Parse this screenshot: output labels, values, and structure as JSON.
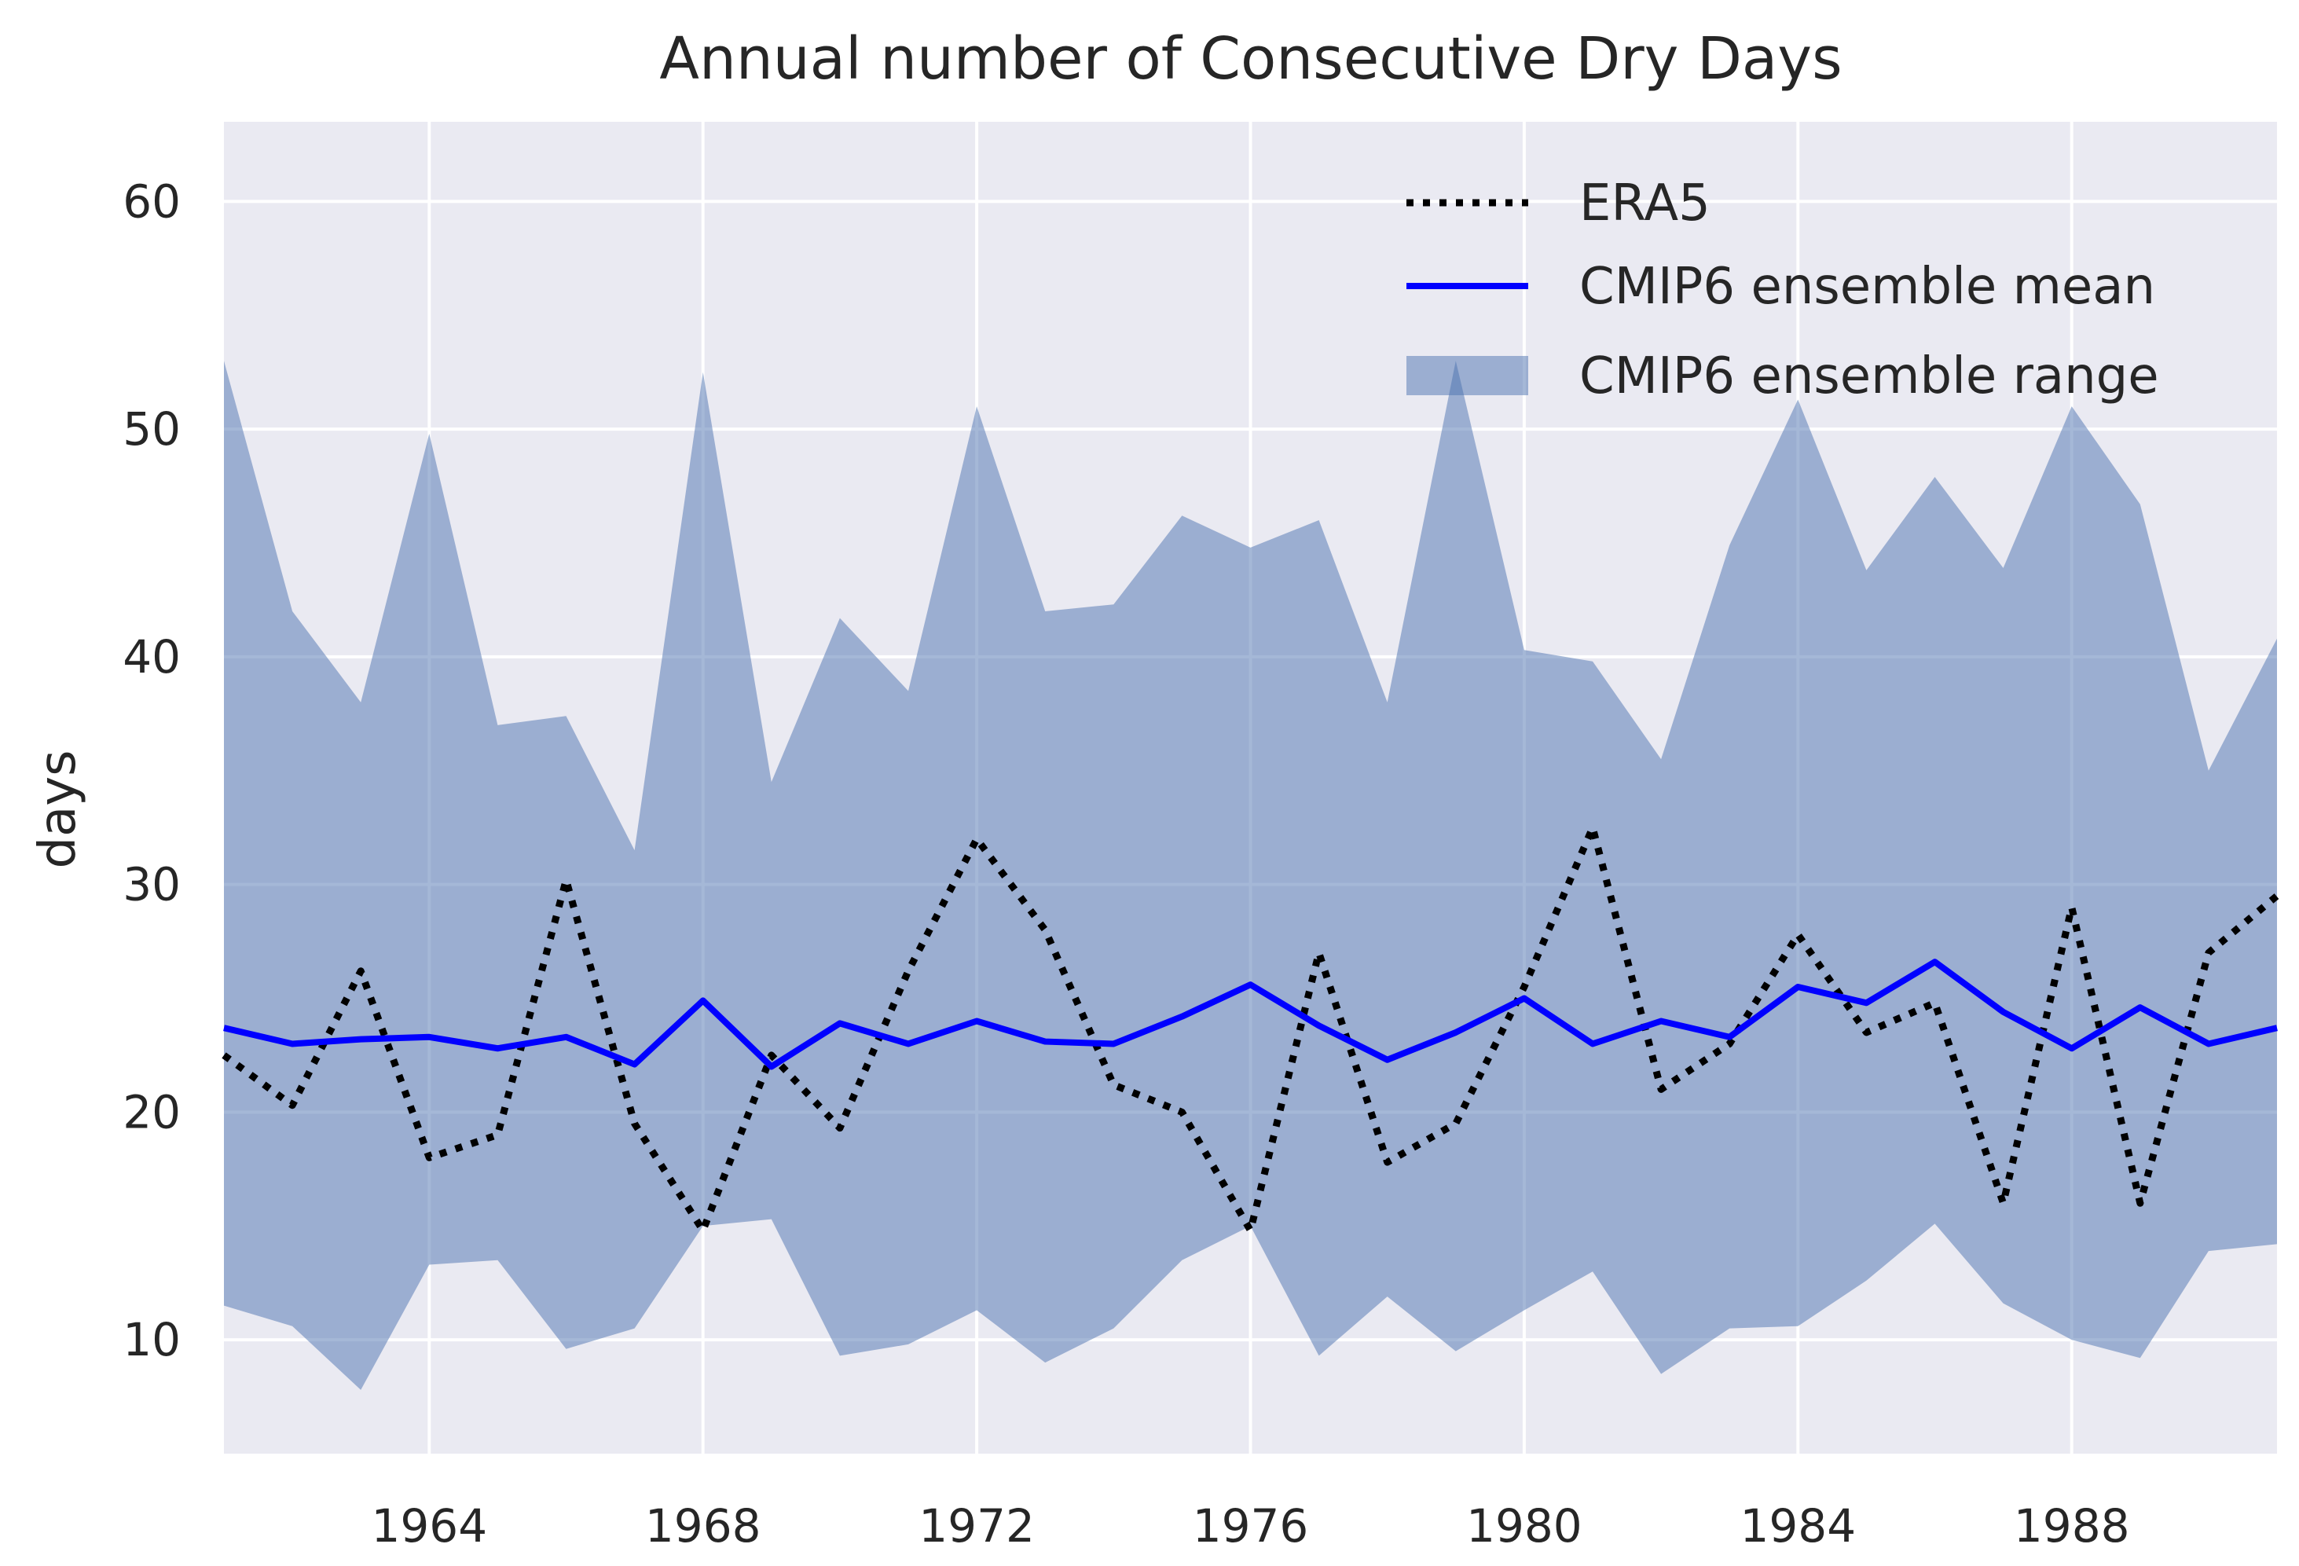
{
  "chart_data": {
    "type": "line",
    "title": "Annual number of Consecutive Dry Days",
    "xlabel": "",
    "ylabel": "days",
    "xlim": [
      1961,
      1991
    ],
    "ylim": [
      5,
      63.5
    ],
    "x_ticks": [
      1964,
      1968,
      1972,
      1976,
      1980,
      1984,
      1988
    ],
    "y_ticks": [
      10,
      20,
      30,
      40,
      50,
      60
    ],
    "grid": true,
    "legend_position": "top-right",
    "x": [
      1961,
      1962,
      1963,
      1964,
      1965,
      1966,
      1967,
      1968,
      1969,
      1970,
      1971,
      1972,
      1973,
      1974,
      1975,
      1976,
      1977,
      1978,
      1979,
      1980,
      1981,
      1982,
      1983,
      1984,
      1985,
      1986,
      1987,
      1988,
      1989,
      1990,
      1991
    ],
    "series": [
      {
        "name": "ERA5",
        "style": "dotted",
        "color": "#000000",
        "values": [
          22.5,
          20.3,
          26.2,
          18,
          19,
          30.2,
          19.5,
          14.8,
          22.5,
          19.3,
          26.2,
          32,
          28,
          21.2,
          20,
          14.8,
          27,
          17.8,
          19.5,
          25.5,
          32.5,
          21,
          23,
          27.8,
          23.5,
          24.8,
          16,
          29,
          16,
          27,
          29.5
        ]
      },
      {
        "name": "CMIP6 ensemble mean",
        "style": "solid",
        "color": "#0000ff",
        "values": [
          23.7,
          23,
          23.2,
          23.3,
          22.8,
          23.3,
          22.1,
          24.9,
          22,
          23.9,
          23,
          24,
          23.1,
          23,
          24.2,
          25.6,
          23.8,
          22.3,
          23.5,
          25,
          23,
          24,
          23.3,
          25.5,
          24.8,
          26.6,
          24.4,
          22.8,
          24.6,
          23,
          23.7
        ]
      },
      {
        "name": "CMIP6 ensemble range",
        "style": "band",
        "color": "#4c72b0",
        "lower": [
          11.5,
          10.6,
          7.8,
          13.3,
          13.5,
          9.6,
          10.5,
          15,
          15.3,
          9.3,
          9.8,
          11.3,
          9,
          10.5,
          13.5,
          15,
          9.3,
          11.9,
          9.5,
          11.3,
          13,
          8.5,
          10.5,
          10.6,
          12.6,
          15.1,
          11.6,
          10,
          9.2,
          13.9,
          14.2
        ],
        "upper": [
          53,
          42,
          38,
          49.8,
          37,
          37.4,
          31.5,
          52.5,
          34.5,
          41.7,
          38.5,
          51,
          42,
          42.3,
          46.2,
          44.8,
          46,
          38,
          53,
          40.3,
          39.8,
          35.5,
          44.9,
          51.3,
          43.8,
          47.9,
          43.9,
          51,
          46.7,
          35,
          40.8
        ]
      }
    ]
  },
  "colors": {
    "plot_background": "#eaeaf2",
    "grid": "#ffffff",
    "text": "#262626"
  }
}
